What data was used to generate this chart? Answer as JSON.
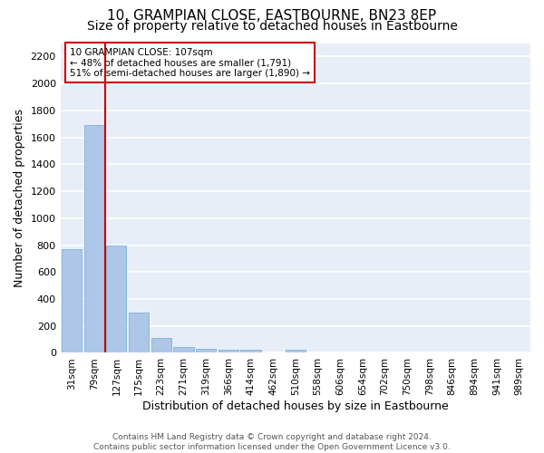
{
  "title": "10, GRAMPIAN CLOSE, EASTBOURNE, BN23 8EP",
  "subtitle": "Size of property relative to detached houses in Eastbourne",
  "xlabel": "Distribution of detached houses by size in Eastbourne",
  "ylabel": "Number of detached properties",
  "categories": [
    "31sqm",
    "79sqm",
    "127sqm",
    "175sqm",
    "223sqm",
    "271sqm",
    "319sqm",
    "366sqm",
    "414sqm",
    "462sqm",
    "510sqm",
    "558sqm",
    "606sqm",
    "654sqm",
    "702sqm",
    "750sqm",
    "798sqm",
    "846sqm",
    "894sqm",
    "941sqm",
    "989sqm"
  ],
  "values": [
    770,
    1690,
    795,
    300,
    110,
    45,
    30,
    25,
    22,
    0,
    20,
    0,
    0,
    0,
    0,
    0,
    0,
    0,
    0,
    0,
    0
  ],
  "bar_color": "#aec6e8",
  "bar_edge_color": "#6aaed6",
  "vline_color": "#cc0000",
  "annotation_line1": "10 GRAMPIAN CLOSE: 107sqm",
  "annotation_line2": "← 48% of detached houses are smaller (1,791)",
  "annotation_line3": "51% of semi-detached houses are larger (1,890) →",
  "annotation_box_color": "#ffffff",
  "annotation_box_edge": "#cc0000",
  "ylim": [
    0,
    2300
  ],
  "yticks": [
    0,
    200,
    400,
    600,
    800,
    1000,
    1200,
    1400,
    1600,
    1800,
    2000,
    2200
  ],
  "background_color": "#e8eef7",
  "grid_color": "#ffffff",
  "footer_text": "Contains HM Land Registry data © Crown copyright and database right 2024.\nContains public sector information licensed under the Open Government Licence v3.0.",
  "title_fontsize": 11,
  "subtitle_fontsize": 10,
  "ylabel_fontsize": 9,
  "xlabel_fontsize": 9
}
